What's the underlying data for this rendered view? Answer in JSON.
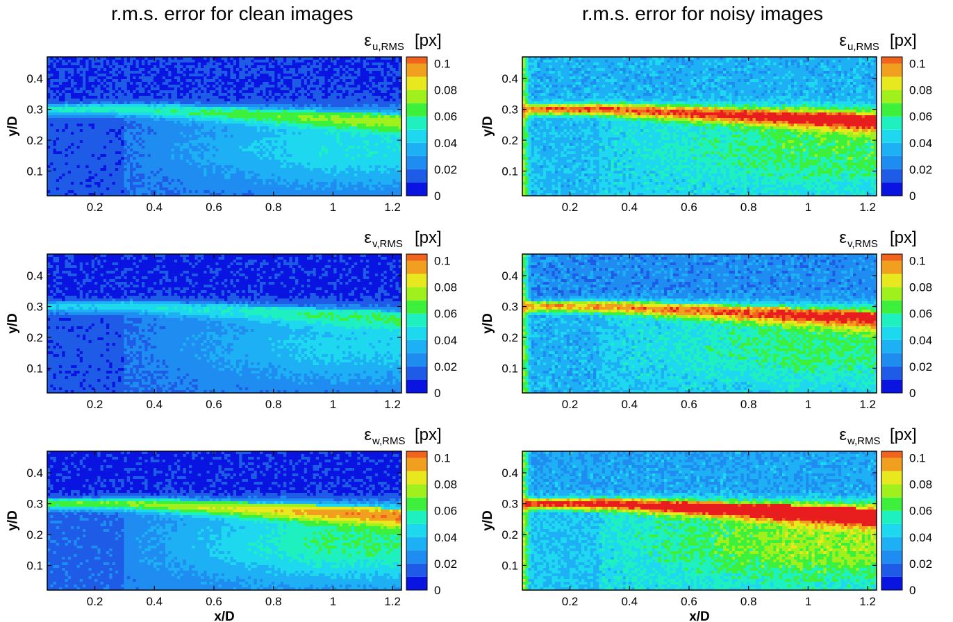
{
  "columns": [
    {
      "title": "r.m.s. error for clean images"
    },
    {
      "title": "r.m.s. error for noisy images"
    }
  ],
  "colorbar": {
    "unit": "[px]",
    "ticks": [
      "0",
      "0.02",
      "0.04",
      "0.06",
      "0.08",
      "0.1"
    ],
    "levels": [
      0,
      0.01,
      0.02,
      0.03,
      0.04,
      0.05,
      0.06,
      0.07,
      0.08,
      0.09,
      0.1,
      0.105
    ],
    "colors": [
      "#0a14e0",
      "#1e5ce8",
      "#1e8cf0",
      "#1eb0f4",
      "#1ed8f0",
      "#1ef0c0",
      "#3cf03c",
      "#a0f01e",
      "#e8e81e",
      "#f0a01e",
      "#f0641e",
      "#e81e1e"
    ]
  },
  "chart_data": [
    {
      "type": "heatmap",
      "column": "clean",
      "component": "u",
      "legend_symbol": "ε",
      "legend_subscript": "u,RMS",
      "ylabel": "y/D",
      "xlabel": "",
      "xlim": [
        0.04,
        1.23
      ],
      "ylim": [
        0.02,
        0.47
      ],
      "xticks": [
        "0.2",
        "0.4",
        "0.6",
        "0.8",
        "1",
        "1.2"
      ],
      "yticks": [
        "0.1",
        "0.2",
        "0.3",
        "0.4"
      ],
      "colorbar_range": [
        0,
        0.105
      ],
      "field": {
        "top": 0.01,
        "shear": 0.035,
        "shear_growth": 0.005,
        "core": 0.018,
        "core_growth": 0.03,
        "wall_peak": 0.0,
        "noise": 0.004
      },
      "grid": false
    },
    {
      "type": "heatmap",
      "column": "noisy",
      "component": "u",
      "legend_symbol": "ε",
      "legend_subscript": "u,RMS",
      "ylabel": "y/D",
      "xlabel": "",
      "xlim": [
        0.04,
        1.23
      ],
      "ylim": [
        0.02,
        0.47
      ],
      "xticks": [
        "0.2",
        "0.4",
        "0.6",
        "0.8",
        "1",
        "1.2"
      ],
      "yticks": [
        "0.1",
        "0.2",
        "0.3",
        "0.4"
      ],
      "colorbar_range": [
        0,
        0.105
      ],
      "field": {
        "top": 0.035,
        "shear": 0.06,
        "shear_growth": 0.005,
        "core": 0.042,
        "core_growth": 0.022,
        "wall_peak": 0.1,
        "noise": 0.008
      },
      "grid": false
    },
    {
      "type": "heatmap",
      "column": "clean",
      "component": "v",
      "legend_symbol": "ε",
      "legend_subscript": "v,RMS",
      "ylabel": "y/D",
      "xlabel": "",
      "xlim": [
        0.04,
        1.23
      ],
      "ylim": [
        0.02,
        0.47
      ],
      "xticks": [
        "0.2",
        "0.4",
        "0.6",
        "0.8",
        "1",
        "1.2"
      ],
      "yticks": [
        "0.1",
        "0.2",
        "0.3",
        "0.4"
      ],
      "colorbar_range": [
        0,
        0.105
      ],
      "field": {
        "top": 0.008,
        "shear": 0.025,
        "shear_growth": 0.005,
        "core": 0.018,
        "core_growth": 0.025,
        "wall_peak": 0.0,
        "noise": 0.004
      },
      "grid": false
    },
    {
      "type": "heatmap",
      "column": "noisy",
      "component": "v",
      "legend_symbol": "ε",
      "legend_subscript": "v,RMS",
      "ylabel": "y/D",
      "xlabel": "",
      "xlim": [
        0.04,
        1.23
      ],
      "ylim": [
        0.02,
        0.47
      ],
      "xticks": [
        "0.2",
        "0.4",
        "0.6",
        "0.8",
        "1",
        "1.2"
      ],
      "yticks": [
        "0.1",
        "0.2",
        "0.3",
        "0.4"
      ],
      "colorbar_range": [
        0,
        0.105
      ],
      "field": {
        "top": 0.025,
        "shear": 0.055,
        "shear_growth": 0.005,
        "core": 0.04,
        "core_growth": 0.022,
        "wall_peak": 0.1,
        "noise": 0.008
      },
      "grid": false
    },
    {
      "type": "heatmap",
      "column": "clean",
      "component": "w",
      "legend_symbol": "ε",
      "legend_subscript": "w,RMS",
      "ylabel": "y/D",
      "xlabel": "x/D",
      "xlim": [
        0.04,
        1.23
      ],
      "ylim": [
        0.02,
        0.47
      ],
      "xticks": [
        "0.2",
        "0.4",
        "0.6",
        "0.8",
        "1",
        "1.2"
      ],
      "yticks": [
        "0.1",
        "0.2",
        "0.3",
        "0.4"
      ],
      "colorbar_range": [
        0,
        0.105
      ],
      "field": {
        "top": 0.008,
        "shear": 0.045,
        "shear_growth": 0.01,
        "core": 0.022,
        "core_growth": 0.038,
        "wall_peak": 0.0,
        "noise": 0.004
      },
      "grid": false
    },
    {
      "type": "heatmap",
      "column": "noisy",
      "component": "w",
      "legend_symbol": "ε",
      "legend_subscript": "w,RMS",
      "ylabel": "y/D",
      "xlabel": "x/D",
      "xlim": [
        0.04,
        1.23
      ],
      "ylim": [
        0.02,
        0.47
      ],
      "xticks": [
        "0.2",
        "0.4",
        "0.6",
        "0.8",
        "1",
        "1.2"
      ],
      "yticks": [
        "0.1",
        "0.2",
        "0.3",
        "0.4"
      ],
      "colorbar_range": [
        0,
        0.105
      ],
      "field": {
        "top": 0.032,
        "shear": 0.065,
        "shear_growth": 0.01,
        "core": 0.045,
        "core_growth": 0.03,
        "wall_peak": 0.1,
        "noise": 0.009
      },
      "grid": false
    }
  ]
}
